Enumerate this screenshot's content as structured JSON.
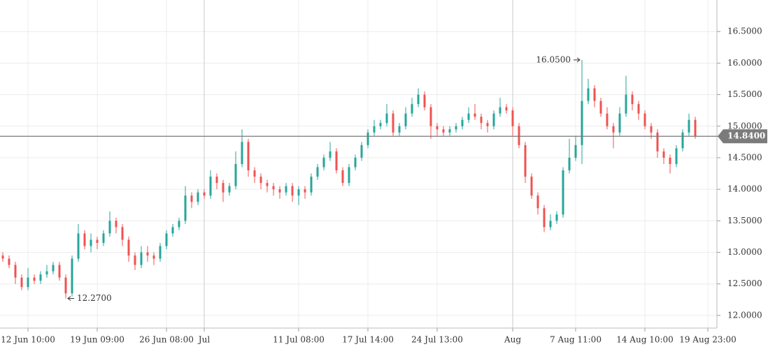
{
  "chart_data": {
    "type": "ohlc",
    "categories": [
      null,
      null,
      null,
      null,
      "12 Jun 10:00",
      null,
      null,
      null,
      null,
      null,
      null,
      null,
      null,
      null,
      null,
      "19 Jun 09:00",
      null,
      null,
      null,
      null,
      null,
      null,
      null,
      null,
      null,
      null,
      "26 Jun 08:00",
      null,
      null,
      null,
      null,
      null,
      "Jul",
      null,
      null,
      null,
      null,
      null,
      null,
      null,
      null,
      null,
      null,
      null,
      null,
      null,
      null,
      "11 Jul 08:00",
      null,
      null,
      null,
      null,
      null,
      null,
      null,
      null,
      null,
      null,
      "17 Jul 14:00",
      null,
      null,
      null,
      null,
      null,
      null,
      null,
      null,
      null,
      null,
      "24 Jul 13:00",
      null,
      null,
      null,
      null,
      null,
      null,
      null,
      null,
      null,
      null,
      null,
      "Aug",
      null,
      null,
      null,
      null,
      null,
      null,
      null,
      null,
      null,
      "7 Aug 11:00",
      null,
      null,
      null,
      null,
      null,
      null,
      null,
      null,
      null,
      null,
      "14 Aug 10:00",
      null,
      null,
      null,
      null,
      null,
      null,
      null,
      null,
      null,
      "19 Aug 23:00"
    ],
    "open": [
      12.95,
      12.9,
      12.8,
      12.6,
      12.45,
      12.6,
      12.55,
      12.65,
      12.7,
      12.8,
      12.6,
      12.35,
      12.9,
      13.3,
      13.1,
      13.2,
      13.15,
      13.3,
      13.5,
      13.4,
      13.2,
      12.95,
      12.8,
      13.0,
      12.95,
      12.9,
      13.1,
      13.3,
      13.4,
      13.5,
      13.9,
      13.8,
      13.95,
      13.9,
      14.2,
      14.1,
      13.95,
      14.05,
      14.4,
      14.75,
      14.3,
      14.2,
      14.1,
      14.05,
      14.0,
      13.95,
      14.05,
      13.9,
      14.0,
      13.95,
      14.2,
      14.35,
      14.5,
      14.6,
      14.3,
      14.1,
      14.35,
      14.5,
      14.7,
      14.9,
      15.0,
      15.05,
      15.2,
      14.9,
      15.0,
      15.2,
      15.35,
      15.5,
      15.3,
      15.0,
      14.95,
      14.9,
      14.95,
      15.0,
      15.1,
      15.2,
      15.15,
      15.05,
      15.0,
      15.2,
      15.3,
      15.25,
      15.0,
      14.7,
      14.2,
      13.9,
      13.7,
      13.4,
      13.5,
      13.6,
      14.3,
      14.5,
      14.7,
      15.4,
      15.6,
      15.4,
      15.2,
      15.0,
      14.9,
      15.2,
      15.5,
      15.35,
      15.2,
      15.0,
      14.9,
      14.6,
      14.5,
      14.4,
      14.65,
      14.9,
      15.1,
      null,
      null
    ],
    "high": [
      13.0,
      12.95,
      12.85,
      12.65,
      12.75,
      12.65,
      12.7,
      12.8,
      12.85,
      12.85,
      12.65,
      12.95,
      13.45,
      13.35,
      13.3,
      13.25,
      13.35,
      13.65,
      13.55,
      13.45,
      13.25,
      13.0,
      13.1,
      13.1,
      13.0,
      13.15,
      13.35,
      13.45,
      13.55,
      14.05,
      13.95,
      14.0,
      14.0,
      14.3,
      14.25,
      14.15,
      14.1,
      14.6,
      14.95,
      14.8,
      14.35,
      14.25,
      14.15,
      14.1,
      14.05,
      14.1,
      14.1,
      14.05,
      14.05,
      14.25,
      14.4,
      14.55,
      14.75,
      14.65,
      14.35,
      14.4,
      14.55,
      14.75,
      14.95,
      15.1,
      15.1,
      15.35,
      15.25,
      15.05,
      15.3,
      15.45,
      15.6,
      15.55,
      15.35,
      15.05,
      15.0,
      15.0,
      15.05,
      15.15,
      15.3,
      15.35,
      15.2,
      15.1,
      15.25,
      15.45,
      15.35,
      15.3,
      15.05,
      14.75,
      14.25,
      13.95,
      13.75,
      13.6,
      13.65,
      14.35,
      14.8,
      14.85,
      16.05,
      15.75,
      15.65,
      15.45,
      15.3,
      15.05,
      15.3,
      15.8,
      15.55,
      15.4,
      15.25,
      15.05,
      14.95,
      14.65,
      14.55,
      14.7,
      14.95,
      15.2,
      15.15,
      null,
      null
    ],
    "low": [
      12.85,
      12.75,
      12.5,
      12.4,
      12.4,
      12.5,
      12.5,
      12.6,
      12.65,
      12.55,
      12.27,
      12.3,
      12.85,
      13.05,
      13.0,
      13.05,
      13.1,
      13.25,
      13.3,
      13.1,
      12.85,
      12.72,
      12.75,
      12.85,
      12.8,
      12.85,
      13.05,
      13.25,
      13.35,
      13.45,
      13.7,
      13.75,
      13.85,
      13.85,
      14.0,
      13.8,
      13.9,
      14.0,
      14.35,
      14.2,
      14.1,
      14.0,
      13.95,
      13.9,
      13.85,
      13.9,
      13.8,
      13.75,
      13.85,
      13.9,
      14.15,
      14.3,
      14.45,
      14.25,
      14.05,
      14.05,
      14.3,
      14.45,
      14.65,
      14.85,
      14.95,
      15.0,
      14.85,
      14.85,
      14.95,
      15.15,
      15.3,
      15.25,
      14.8,
      14.85,
      14.85,
      14.85,
      14.9,
      14.95,
      15.05,
      15.1,
      14.95,
      14.9,
      14.95,
      15.15,
      15.2,
      14.85,
      14.65,
      14.1,
      13.85,
      13.6,
      13.32,
      13.35,
      13.45,
      13.55,
      14.25,
      14.45,
      14.4,
      15.35,
      15.3,
      15.15,
      14.95,
      14.65,
      14.85,
      15.15,
      15.25,
      15.1,
      14.95,
      14.8,
      14.5,
      14.4,
      14.25,
      14.35,
      14.6,
      14.85,
      14.8,
      null,
      null
    ],
    "close": [
      12.9,
      12.8,
      12.6,
      12.45,
      12.6,
      12.55,
      12.65,
      12.7,
      12.8,
      12.6,
      12.35,
      12.9,
      13.3,
      13.1,
      13.2,
      13.15,
      13.3,
      13.5,
      13.4,
      13.2,
      12.95,
      12.8,
      13.0,
      12.95,
      12.9,
      13.1,
      13.3,
      13.4,
      13.5,
      13.9,
      13.8,
      13.95,
      13.9,
      14.2,
      14.1,
      13.95,
      14.05,
      14.4,
      14.75,
      14.3,
      14.2,
      14.1,
      14.05,
      14.0,
      13.95,
      14.05,
      13.9,
      14.0,
      13.95,
      14.2,
      14.35,
      14.5,
      14.6,
      14.3,
      14.1,
      14.35,
      14.5,
      14.7,
      14.9,
      15.0,
      15.05,
      15.2,
      14.9,
      15.0,
      15.2,
      15.35,
      15.5,
      15.3,
      15.0,
      14.95,
      14.9,
      14.95,
      15.0,
      15.1,
      15.2,
      15.15,
      15.05,
      15.0,
      15.2,
      15.3,
      15.25,
      15.0,
      14.7,
      14.2,
      13.9,
      13.7,
      13.4,
      13.5,
      13.6,
      14.3,
      14.5,
      14.7,
      15.4,
      15.6,
      15.4,
      15.2,
      15.0,
      14.9,
      15.2,
      15.5,
      15.35,
      15.2,
      15.0,
      14.9,
      14.6,
      14.5,
      14.4,
      14.65,
      14.9,
      15.1,
      14.84,
      null,
      null
    ],
    "up_color": "#26a69a",
    "down_color": "#ef5350",
    "ylim": [
      11.8,
      17.0
    ],
    "yticks": [
      {
        "value": 12.0,
        "label": "12.0000"
      },
      {
        "value": 12.5,
        "label": "12.5000"
      },
      {
        "value": 13.0,
        "label": "13.0000"
      },
      {
        "value": 13.5,
        "label": "13.5000"
      },
      {
        "value": 14.0,
        "label": "14.0000"
      },
      {
        "value": 14.5,
        "label": "14.5000"
      },
      {
        "value": 15.0,
        "label": "15.0000"
      },
      {
        "value": 15.5,
        "label": "15.5000"
      },
      {
        "value": 16.0,
        "label": "16.0000"
      },
      {
        "value": 16.5,
        "label": "16.5000"
      }
    ],
    "grid": true,
    "annotations": {
      "max": {
        "value": 16.05,
        "label": "16.0500",
        "index": 92
      },
      "min": {
        "value": 12.27,
        "label": "12.2700",
        "index": 10
      },
      "last": {
        "value": 14.84,
        "label": "14.8400"
      }
    }
  }
}
